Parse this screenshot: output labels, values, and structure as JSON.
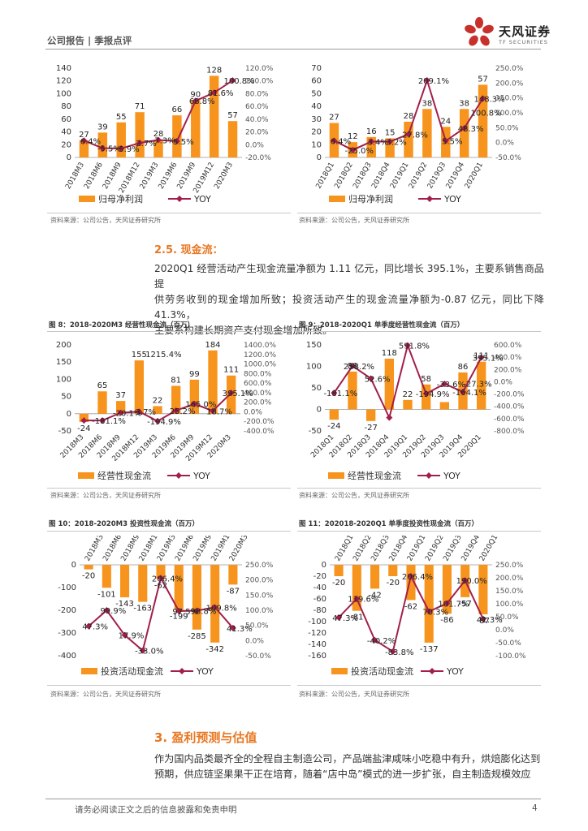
{
  "header": {
    "title": "公司报告 | 季报点评",
    "logo_name": "天风证券",
    "logo_sub": "TF SECURITIES"
  },
  "colors": {
    "bar": "#F7941D",
    "line": "#A31F4A",
    "accent": "#E87722"
  },
  "source": "资料来源：公司公告，天风证券研究所",
  "section_25": {
    "heading": "2.5. 现金流：",
    "lines": [
      "2020Q1 经营活动产生现金流量净额为 1.11 亿元，同比增长 395.1%，主要系销售商品提",
      "供劳务收到的现金增加所致；投资活动产生的现金流量净额为-0.87 亿元，同比下降 41.3%，",
      "主要系构建长期资产支付现金增加所致。"
    ]
  },
  "section_3": {
    "heading": "3. 盈利预测与估值",
    "lines": [
      "作为国内品类最齐全的全程自主制造公司，产品端盐津咸味小吃稳中有升，烘焙膨化达到",
      "预期，供应链坚果果干正在培育，随着“店中岛”模式的进一步扩张，自主制造规模效应"
    ]
  },
  "footer": {
    "disclaimer": "请务必阅读正文之后的信息披露和免责申明",
    "page": "4"
  },
  "chart_data": [
    {
      "type": "bar",
      "title": "",
      "categories": [
        "2018M3",
        "2018M6",
        "2018M9",
        "2018M12",
        "2019M3",
        "2019M6",
        "2019M9",
        "2019M12",
        "2020M3"
      ],
      "series": [
        {
          "name": "归母净利润",
          "kind": "bar",
          "values": [
            27,
            39,
            55,
            71,
            28,
            66,
            90,
            128,
            57
          ],
          "labels": [
            "27",
            "39",
            "55",
            "71",
            "28",
            "66",
            "90",
            "128",
            "57"
          ]
        },
        {
          "name": "YOY",
          "kind": "line",
          "values": [
            6.4,
            -5.5,
            -5.9,
            2.7,
            7.3,
            5.5,
            68.8,
            81.6,
            100.8
          ],
          "labels": [
            "6.4%",
            "-5.5%",
            "-5.9%",
            "2.7%",
            "7.3%",
            "5.5%",
            "68.8%",
            "81.6%",
            "100.8%"
          ]
        }
      ],
      "ylim": [
        0,
        140
      ],
      "yticks": [
        "0",
        "20",
        "40",
        "60",
        "80",
        "100",
        "120",
        "140"
      ],
      "y2lim": [
        -20,
        120
      ],
      "y2ticks": [
        "-20.0%",
        "0.0%",
        "20.0%",
        "40.0%",
        "60.0%",
        "80.0%",
        "100.0%",
        "120.0%"
      ],
      "legend": "bottom"
    },
    {
      "type": "bar",
      "title": "",
      "categories": [
        "2018Q1",
        "2018Q2",
        "2018Q3",
        "2018Q4",
        "2019Q1",
        "2019Q2",
        "2019Q3",
        "2019Q4",
        "2020Q1"
      ],
      "series": [
        {
          "name": "归母净利润",
          "kind": "bar",
          "values": [
            27,
            12,
            16,
            15,
            28,
            38,
            24,
            38,
            57
          ],
          "labels": [
            "27",
            "12",
            "16",
            "15",
            "28",
            "38",
            "24",
            "38",
            "57"
          ]
        },
        {
          "name": "YOY",
          "kind": "line",
          "values": [
            6.4,
            -25.0,
            3.4,
            3.2,
            27.8,
            209.1,
            5.5,
            48.3,
            148.3
          ],
          "labels": [
            "6.4%",
            "-25.0%",
            "3.4%",
            "3.2%",
            "27.8%",
            "209.1%",
            "5.5%",
            "48.3%",
            "148.3%"
          ]
        }
      ],
      "extra_labels": [
        "100.8%"
      ],
      "ylim": [
        0,
        70
      ],
      "yticks": [
        "0",
        "10",
        "20",
        "30",
        "40",
        "50",
        "60",
        "70"
      ],
      "y2lim": [
        -50,
        250
      ],
      "y2ticks": [
        "-50.0%",
        "0.0%",
        "50.0%",
        "100.0%",
        "150.0%",
        "200.0%",
        "250.0%"
      ],
      "legend": "bottom"
    },
    {
      "type": "bar",
      "title": "图 8：2018-2020M3 经营性现金流（百万）",
      "categories": [
        "2018M3",
        "2018M6",
        "2018M9",
        "2018M12",
        "2019M3",
        "2019M6",
        "2019M9",
        "2019M12",
        "2020M3"
      ],
      "series": [
        {
          "name": "经营性现金流",
          "kind": "bar",
          "values": [
            -24,
            65,
            37,
            155,
            22,
            81,
            99,
            184,
            111
          ],
          "labels": [
            "-24",
            "65",
            "37",
            "155",
            "22",
            "81",
            "99",
            "184",
            "111"
          ]
        },
        {
          "name": "YOY",
          "kind": "line",
          "values": [
            -181.1,
            -181.1,
            -20.1,
            3.7,
            -194.9,
            25.2,
            165.0,
            18.7,
            395.1
          ],
          "labels": [
            "",
            "-181.1%",
            "-20.1%",
            "3.7%",
            "-194.9%",
            "25.2%",
            "165.0%",
            "18.7%",
            "395.1%"
          ]
        }
      ],
      "extra_labels": [
        "1215.4%"
      ],
      "ylim": [
        -50,
        200
      ],
      "yticks": [
        "-50",
        "0",
        "50",
        "100",
        "150",
        "200"
      ],
      "y2lim": [
        -400,
        1400
      ],
      "y2ticks": [
        "-400.0%",
        "-200.0%",
        "0.0%",
        "200.0%",
        "400.0%",
        "600.0%",
        "800.0%",
        "1000.0%",
        "1200.0%",
        "1400.0%"
      ],
      "legend": "bottom"
    },
    {
      "type": "bar",
      "title": "图 9：2018-2020Q1 单季度经营性现金流（百万）",
      "categories": [
        "2018Q1",
        "2018Q2",
        "2018Q3",
        "2018Q4",
        "2019Q1",
        "2019Q2",
        "2019Q3",
        "2019Q4",
        "2020Q1"
      ],
      "series": [
        {
          "name": "经营性现金流",
          "kind": "bar",
          "values": [
            -24,
            88,
            -27,
            118,
            22,
            58,
            17,
            86,
            111
          ],
          "labels": [
            "-24",
            "88",
            "-27",
            "118",
            "22",
            "58",
            "",
            "86",
            "111"
          ]
        },
        {
          "name": "YOY",
          "kind": "line",
          "values": [
            -181.1,
            258.2,
            52.6,
            -584,
            591.8,
            -194.9,
            -33.6,
            -164.1,
            395.1
          ],
          "labels": [
            "-181.1%",
            "258.2%",
            "52.6%",
            "",
            "591.8%",
            "-194.9%",
            "-33.6%",
            "-164.1%",
            "395.1%"
          ]
        }
      ],
      "extra_labels": [
        "-27.3%"
      ],
      "ylim": [
        -50,
        150
      ],
      "yticks": [
        "-50",
        "0",
        "50",
        "100",
        "150"
      ],
      "y2lim": [
        -800,
        600
      ],
      "y2ticks": [
        "-800.0%",
        "-600.0%",
        "-400.0%",
        "-200.0%",
        "0.0%",
        "200.0%",
        "400.0%",
        "600.0%"
      ],
      "legend": "bottom"
    },
    {
      "type": "bar",
      "title": "图 10：2018-2020M3 投资性现金流（百万）",
      "categories": [
        "2018M3",
        "2018M6",
        "2018M9",
        "2018M12",
        "2019M3",
        "2019M6",
        "2019M9",
        "2019M12",
        "2020M3"
      ],
      "series": [
        {
          "name": "投资活动现金流",
          "kind": "bar",
          "values": [
            -20,
            -101,
            -143,
            -163,
            -62,
            -199,
            -285,
            -342,
            -87
          ],
          "labels": [
            "-20",
            "-101",
            "-143",
            "-163",
            "-62",
            "-199",
            "-285",
            "-342",
            "-87"
          ]
        },
        {
          "name": "YOY",
          "kind": "line",
          "values": [
            47.3,
            99.9,
            17.9,
            -33.0,
            206.4,
            97.5,
            98.8,
            109.8,
            41.3
          ],
          "labels": [
            "47.3%",
            "99.9%",
            "17.9%",
            "-33.0%",
            "206.4%",
            "97.5%",
            "98.8%",
            "109.8%",
            "41.3%"
          ]
        }
      ],
      "ylim": [
        -400,
        0
      ],
      "yticks": [
        "-400",
        "-300",
        "-200",
        "-100",
        "0"
      ],
      "y2lim": [
        -50,
        250
      ],
      "y2ticks": [
        "-50.0%",
        "0.0%",
        "50.0%",
        "100.0%",
        "150.0%",
        "200.0%",
        "250.0%"
      ],
      "legend": "bottom"
    },
    {
      "type": "bar",
      "title": "图 11：202018-2020Q1 单季度投资性现金流（百万）",
      "categories": [
        "2018Q1",
        "2018Q2",
        "2018Q3",
        "2018Q4",
        "2019Q1",
        "2019Q2",
        "2019Q3",
        "2019Q4",
        "2020Q1"
      ],
      "series": [
        {
          "name": "投资活动现金流",
          "kind": "bar",
          "values": [
            -20,
            -81,
            -42,
            -20,
            -62,
            -137,
            -86,
            -57,
            -87
          ],
          "labels": [
            "-20",
            "-81",
            "-42",
            "-20",
            "-62",
            "-137",
            "-86",
            "-57",
            "-87"
          ]
        },
        {
          "name": "YOY",
          "kind": "line",
          "values": [
            47.3,
            119.6,
            -40.2,
            -83.8,
            206.4,
            70.3,
            101.7,
            190.0,
            41.3
          ],
          "labels": [
            "47.3%",
            "119.6%",
            "-40.2%",
            "-83.8%",
            "206.4%",
            "70.3%",
            "101.7%",
            "190.0%",
            "41.3%"
          ]
        }
      ],
      "ylim": [
        -160,
        0
      ],
      "yticks": [
        "-160",
        "-140",
        "-120",
        "-100",
        "-80",
        "-60",
        "-40",
        "-20",
        "0"
      ],
      "y2lim": [
        -100,
        250
      ],
      "y2ticks": [
        "-100.0%",
        "-50.0%",
        "0.0%",
        "50.0%",
        "100.0%",
        "150.0%",
        "200.0%",
        "250.0%"
      ],
      "legend": "bottom"
    }
  ]
}
